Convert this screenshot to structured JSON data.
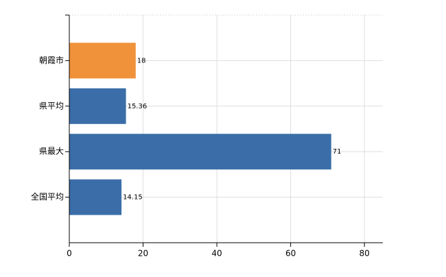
{
  "chart_data": {
    "type": "hbar",
    "categories": [
      "朝霞市",
      "県平均",
      "県最大",
      "全国平均"
    ],
    "values": [
      18,
      15.36,
      71,
      14.15
    ],
    "colors": [
      "#f0923a",
      "#3b6ea8",
      "#3b6ea8",
      "#3b6ea8"
    ],
    "xlim": [
      0,
      85
    ],
    "xticks": [
      0,
      20,
      40,
      60,
      80
    ],
    "grid": true
  }
}
